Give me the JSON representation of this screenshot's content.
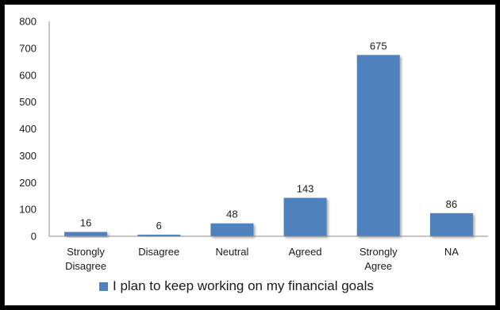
{
  "chart_data": {
    "type": "bar",
    "categories": [
      "Strongly\nDisagree",
      "Disagree",
      "Neutral",
      "Agreed",
      "Strongly\nAgree",
      "NA"
    ],
    "series": [
      {
        "name": "I plan to keep working on my financial goals",
        "values": [
          16,
          6,
          48,
          143,
          675,
          86
        ],
        "color": "#4f81bd"
      }
    ],
    "ylim": [
      0,
      800
    ],
    "yticks": [
      0,
      100,
      200,
      300,
      400,
      500,
      600,
      700,
      800
    ],
    "grid": false,
    "legend": "bottom",
    "data_labels": true
  }
}
